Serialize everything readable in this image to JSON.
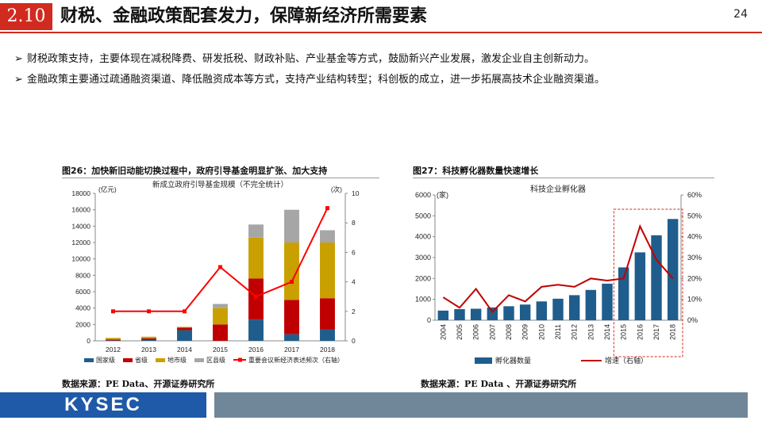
{
  "header": {
    "section_number": "2.10",
    "title": "财税、金融政策配套发力，保障新经济所需要素",
    "page_number": "24"
  },
  "bullets": [
    "财税政策支持，主要体现在减税降费、研发抵税、财政补贴、产业基金等方式，鼓励新兴产业发展，激发企业自主创新动力。",
    "金融政策主要通过疏通融资渠道、降低融资成本等方式，支持产业结构转型；科创板的成立，进一步拓展高技术企业融资渠道。"
  ],
  "bullet_marker": "➢",
  "figure_left": {
    "caption": "图26：加快新旧动能切换过程中，政府引导基金明显扩张、加大支持",
    "source": "数据来源：PE Data、开源证券研究所"
  },
  "figure_right": {
    "caption": "图27：科技孵化器数量快速增长",
    "source": "数据来源：PE Data 、开源证券研究所"
  },
  "footer": {
    "logo_text": "KYSEC"
  },
  "chart_data": [
    {
      "type": "bar",
      "stacked": true,
      "title": "新成立政府引导基金规模（不完全统计）",
      "y_unit_label": "(亿元)",
      "y2_unit_label": "(次)",
      "categories": [
        "2012",
        "2013",
        "2014",
        "2015",
        "2016",
        "2017",
        "2018"
      ],
      "ylim": [
        0,
        18000
      ],
      "yticks": [
        0,
        2000,
        4000,
        6000,
        8000,
        10000,
        12000,
        14000,
        16000,
        18000
      ],
      "y2lim": [
        0,
        10
      ],
      "y2ticks": [
        0,
        2,
        4,
        6,
        8,
        10
      ],
      "series": [
        {
          "name": "国家级",
          "color": "#1f5d8c",
          "values": [
            50,
            100,
            1300,
            0,
            2600,
            800,
            1400
          ]
        },
        {
          "name": "省级",
          "color": "#c00000",
          "values": [
            100,
            200,
            300,
            2000,
            5000,
            4200,
            3800
          ]
        },
        {
          "name": "地市级",
          "color": "#c9a000",
          "values": [
            200,
            200,
            100,
            2000,
            5000,
            7000,
            6800
          ]
        },
        {
          "name": "区县级",
          "color": "#a6a6a6",
          "values": [
            0,
            0,
            0,
            500,
            1600,
            4000,
            1500
          ]
        }
      ],
      "line_series": {
        "name": "重要会议新经济表述频次（右轴）",
        "color": "#ff0000",
        "axis": "right",
        "values": [
          2,
          2,
          2,
          5,
          3,
          4,
          9
        ]
      },
      "grid": false,
      "legend": "bottom"
    },
    {
      "type": "bar",
      "title": "科技企业孵化器",
      "y_unit_label": "(家)",
      "categories": [
        "2004",
        "2005",
        "2006",
        "2007",
        "2008",
        "2009",
        "2010",
        "2011",
        "2012",
        "2013",
        "2014",
        "2015",
        "2016",
        "2017",
        "2018"
      ],
      "ylim": [
        0,
        6000
      ],
      "yticks": [
        0,
        1000,
        2000,
        3000,
        4000,
        5000,
        6000
      ],
      "y2lim": [
        0,
        60
      ],
      "y2ticks": [
        "0%",
        "10%",
        "20%",
        "30%",
        "40%",
        "50%",
        "60%"
      ],
      "series": [
        {
          "name": "孵化器数量",
          "color": "#1f5d8c",
          "values": [
            460,
            530,
            550,
            610,
            670,
            750,
            900,
            1030,
            1200,
            1450,
            1750,
            2530,
            3250,
            4070,
            4850
          ]
        }
      ],
      "line_series": {
        "name": "增速（右轴）",
        "color": "#c00000",
        "axis": "right",
        "values": [
          11,
          6,
          15,
          4,
          12,
          9,
          16,
          17,
          16,
          20,
          19,
          20,
          45,
          29,
          20
        ]
      },
      "highlight_range": [
        "2015",
        "2018"
      ],
      "grid": false,
      "legend": "bottom"
    }
  ]
}
